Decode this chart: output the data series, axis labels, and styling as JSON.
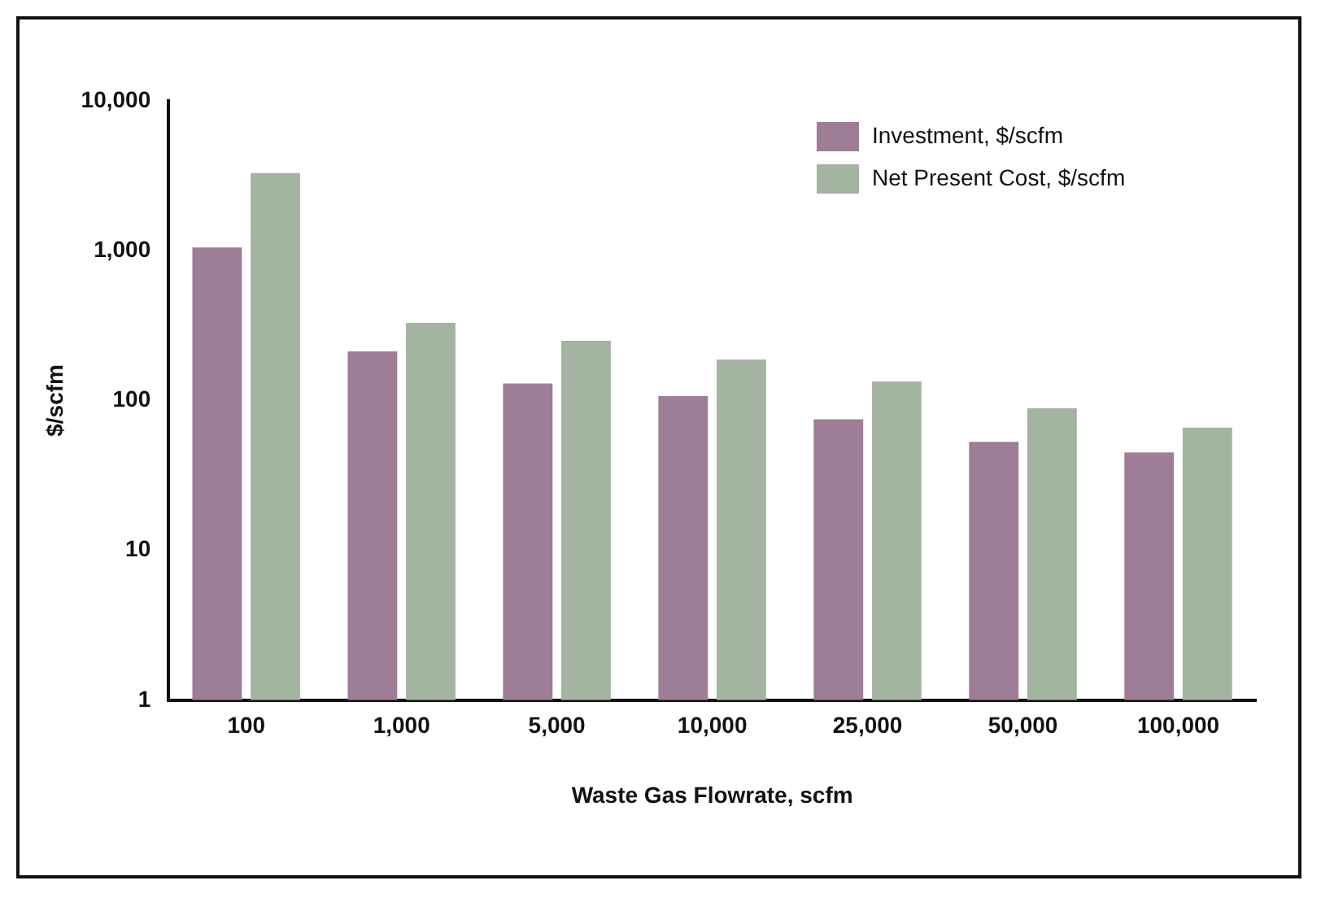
{
  "chart_data": {
    "type": "bar",
    "xlabel": "Waste Gas Flowrate, scfm",
    "ylabel": "$/scfm",
    "categories": [
      "100",
      "1,000",
      "5,000",
      "10,000",
      "25,000",
      "50,000",
      "100,000"
    ],
    "series": [
      {
        "name": "Investment, $/scfm",
        "color": "#9e7d97",
        "values": [
          1050,
          213,
          130,
          107,
          75,
          53,
          45
        ]
      },
      {
        "name": "Net Present Cost, $/scfm",
        "color": "#a3b5a0",
        "values": [
          3300,
          330,
          250,
          188,
          134,
          89,
          66
        ]
      }
    ],
    "log": true,
    "ylim": [
      1,
      10000
    ],
    "yticks": [
      1,
      10,
      {
        "value": 100,
        "label": "100"
      },
      {
        "value": 1000,
        "label": "1,000"
      },
      {
        "value": 10000,
        "label": "10,000"
      }
    ],
    "grid": false,
    "legend": "top right"
  }
}
